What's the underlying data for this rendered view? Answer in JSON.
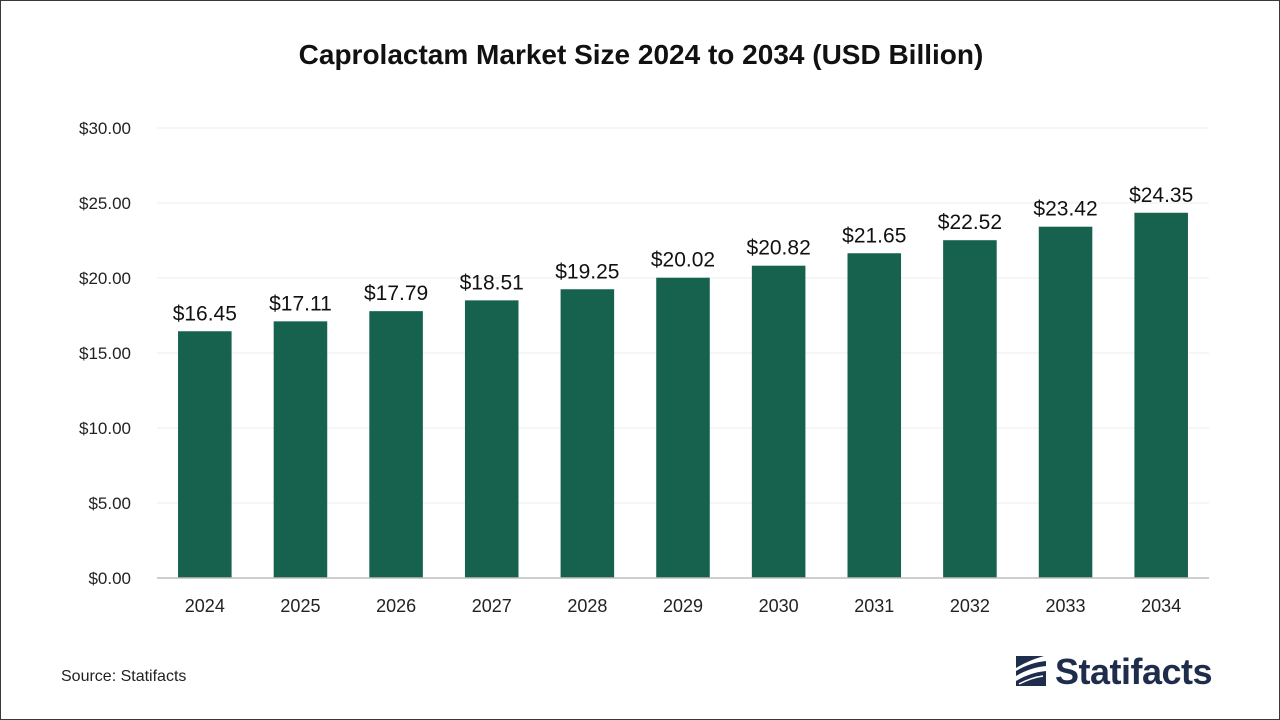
{
  "chart_data": {
    "type": "bar",
    "title": "Caprolactam Market Size 2024 to 2034 (USD Billion)",
    "xlabel": "",
    "ylabel": "",
    "categories": [
      "2024",
      "2025",
      "2026",
      "2027",
      "2028",
      "2029",
      "2030",
      "2031",
      "2032",
      "2033",
      "2034"
    ],
    "values": [
      16.45,
      17.11,
      17.79,
      18.51,
      19.25,
      20.02,
      20.82,
      21.65,
      22.52,
      23.42,
      24.35
    ],
    "data_labels": [
      "$16.45",
      "$17.11",
      "$17.79",
      "$18.51",
      "$19.25",
      "$20.02",
      "$20.82",
      "$21.65",
      "$22.52",
      "$23.42",
      "$24.35"
    ],
    "ylim": [
      0,
      30
    ],
    "yticks": [
      0,
      5,
      10,
      15,
      20,
      25,
      30
    ],
    "ytick_labels": [
      "$0.00",
      "$5.00",
      "$10.00",
      "$15.00",
      "$20.00",
      "$25.00",
      "$30.00"
    ],
    "grid": true,
    "legend": "none",
    "bar_color": "#17614f"
  },
  "footer": {
    "source": "Source: Statifacts",
    "brand": "Statifacts",
    "brand_color": "#1f2d4d"
  }
}
